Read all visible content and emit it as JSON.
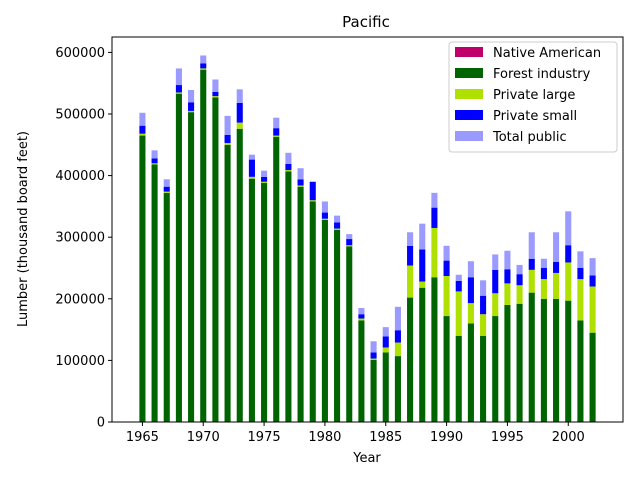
{
  "chart_data": {
    "type": "bar",
    "stacked": true,
    "title": "Pacific",
    "xlabel": "Year",
    "ylabel": "Lumber (thousand board feet)",
    "x": [
      1965,
      1966,
      1967,
      1968,
      1969,
      1970,
      1971,
      1972,
      1973,
      1974,
      1975,
      1976,
      1977,
      1978,
      1979,
      1980,
      1981,
      1982,
      1983,
      1984,
      1985,
      1986,
      1987,
      1988,
      1989,
      1990,
      1991,
      1992,
      1993,
      1994,
      1995,
      1996,
      1997,
      1998,
      1999,
      2000,
      2001,
      2002
    ],
    "xticks": [
      "1965",
      "1970",
      "1975",
      "1980",
      "1985",
      "1990",
      "1995",
      "2000"
    ],
    "yticks": [
      "0",
      "100000",
      "200000",
      "300000",
      "400000",
      "500000",
      "600000"
    ],
    "xlim": [
      1962.5,
      2004.5
    ],
    "ylim": [
      0,
      625000
    ],
    "grid": false,
    "legend_position": "top-right",
    "series": [
      {
        "name": "Native American",
        "color": "#c0006a",
        "values": [
          0,
          0,
          0,
          0,
          0,
          0,
          0,
          0,
          0,
          0,
          0,
          0,
          0,
          0,
          0,
          0,
          0,
          0,
          0,
          0,
          0,
          0,
          0,
          0,
          0,
          0,
          0,
          0,
          0,
          0,
          0,
          0,
          0,
          0,
          0,
          0,
          0,
          0
        ]
      },
      {
        "name": "Forest industry",
        "color": "#006400",
        "values": [
          465000,
          418000,
          372000,
          533000,
          503000,
          572000,
          527000,
          450000,
          476000,
          395000,
          388000,
          463000,
          407000,
          382000,
          358000,
          328000,
          312000,
          285000,
          165000,
          101000,
          113000,
          107000,
          202000,
          218000,
          235000,
          172000,
          140000,
          160000,
          140000,
          172000,
          190000,
          192000,
          210000,
          200000,
          200000,
          197000,
          165000,
          145000
        ]
      },
      {
        "name": "Private large",
        "color": "#b0e000",
        "values": [
          3000,
          2000,
          2000,
          2000,
          2000,
          2000,
          2000,
          3000,
          10000,
          3000,
          2000,
          2000,
          2000,
          2000,
          2000,
          2000,
          2000,
          2000,
          3000,
          2000,
          8000,
          22000,
          52000,
          10000,
          80000,
          65000,
          72000,
          33000,
          35000,
          37000,
          35000,
          30000,
          37000,
          32000,
          42000,
          62000,
          67000,
          75000
        ]
      },
      {
        "name": "Private small",
        "color": "#0000ff",
        "values": [
          13000,
          8000,
          8000,
          12000,
          14000,
          8000,
          7000,
          13000,
          32000,
          28000,
          8000,
          12000,
          10000,
          10000,
          30000,
          10000,
          10000,
          10000,
          7000,
          10000,
          18000,
          20000,
          32000,
          52000,
          33000,
          25000,
          17000,
          42000,
          30000,
          38000,
          23000,
          18000,
          18000,
          18000,
          18000,
          28000,
          18000,
          18000
        ]
      },
      {
        "name": "Total public",
        "color": "#9a9aff",
        "values": [
          21000,
          13000,
          12000,
          27000,
          20000,
          13000,
          20000,
          31000,
          22000,
          8000,
          10000,
          17000,
          18000,
          18000,
          0,
          18000,
          11000,
          8000,
          10000,
          18000,
          15000,
          38000,
          22000,
          42000,
          24000,
          24000,
          10000,
          26000,
          25000,
          25000,
          30000,
          15000,
          43000,
          15000,
          48000,
          55000,
          27000,
          28000
        ]
      }
    ]
  }
}
